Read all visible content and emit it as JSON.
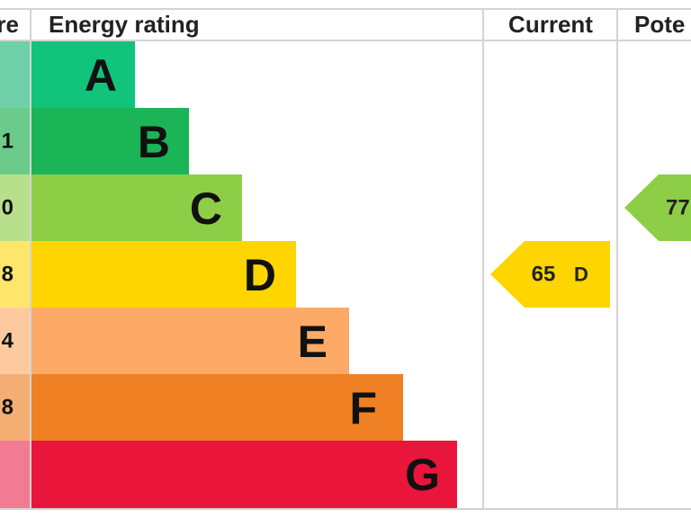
{
  "header": {
    "score": "re",
    "rating": "Energy rating",
    "current": "Current",
    "potential": "Pote"
  },
  "bands": [
    {
      "letter": "A"
    },
    {
      "letter": "B",
      "score": "1"
    },
    {
      "letter": "C",
      "score": "0"
    },
    {
      "letter": "D",
      "score": "8"
    },
    {
      "letter": "E",
      "score": "4"
    },
    {
      "letter": "F",
      "score": "8"
    },
    {
      "letter": "G"
    }
  ],
  "current": {
    "value": 65,
    "letter": "D"
  },
  "potential": {
    "value": 77
  }
}
